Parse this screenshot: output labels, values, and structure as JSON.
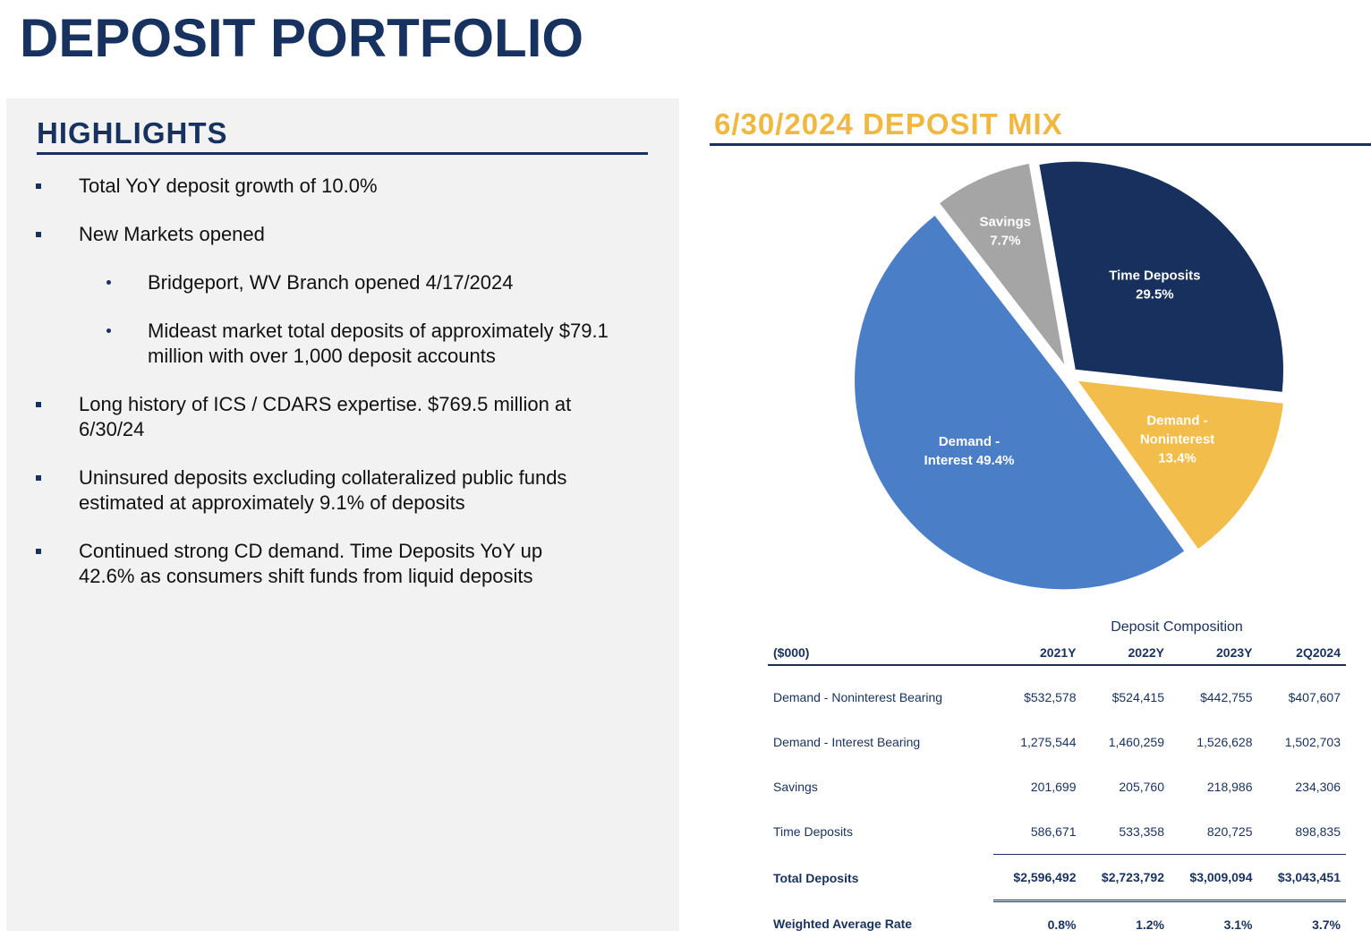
{
  "page": {
    "title": "DEPOSIT PORTFOLIO"
  },
  "highlights": {
    "title": "HIGHLIGHTS",
    "items": [
      {
        "text": "Total YoY deposit growth of 10.0%"
      },
      {
        "text": "New Markets opened"
      },
      {
        "text": "Bridgeport, WV Branch opened 4/17/2024"
      },
      {
        "text": "Mideast market total deposits of approximately $79.1 million with over 1,000 deposit accounts"
      },
      {
        "text": "Long history of ICS / CDARS expertise. $769.5 million at 6/30/24"
      },
      {
        "text": "Uninsured deposits excluding collateralized public funds estimated at approximately 9.1% of deposits"
      },
      {
        "text": "Continued strong CD demand. Time Deposits YoY up 42.6% as consumers shift funds from liquid deposits"
      }
    ]
  },
  "deposit_mix": {
    "title": "6/30/2024 DEPOSIT MIX"
  },
  "chart_data": {
    "type": "pie",
    "slices": [
      {
        "name": "Time Deposits",
        "label_lines": [
          "Time Deposits",
          "29.5%"
        ],
        "value": 29.5,
        "color": "#17305e"
      },
      {
        "name": "Demand - Noninterest",
        "label_lines": [
          "Demand -",
          "Noninterest",
          "13.4%"
        ],
        "value": 13.4,
        "color": "#f2bd4a"
      },
      {
        "name": "Demand - Interest",
        "label_lines": [
          "Demand -",
          "Interest 49.4%"
        ],
        "value": 49.4,
        "color": "#4a7ec7"
      },
      {
        "name": "Savings",
        "label_lines": [
          "Savings",
          "7.7%"
        ],
        "value": 7.7,
        "color": "#a5a5a5"
      }
    ]
  },
  "composition_table": {
    "caption": "Deposit Composition",
    "columns": [
      "($000)",
      "2021Y",
      "2022Y",
      "2023Y",
      "2Q2024"
    ],
    "rows": [
      {
        "label": "Demand - Noninterest Bearing",
        "values": [
          "$532,578",
          "$524,415",
          "$442,755",
          "$407,607"
        ]
      },
      {
        "label": "Demand - Interest Bearing",
        "values": [
          "1,275,544",
          "1,460,259",
          "1,526,628",
          "1,502,703"
        ]
      },
      {
        "label": "Savings",
        "values": [
          "201,699",
          "205,760",
          "218,986",
          "234,306"
        ]
      },
      {
        "label": "Time Deposits",
        "values": [
          "586,671",
          "533,358",
          "820,725",
          "898,835"
        ]
      }
    ],
    "total": {
      "label": "Total Deposits",
      "values": [
        "$2,596,492",
        "$2,723,792",
        "$3,009,094",
        "$3,043,451"
      ]
    },
    "rate": {
      "label": "Weighted Average Rate",
      "values": [
        "0.8%",
        "1.2%",
        "3.1%",
        "3.7%"
      ]
    }
  }
}
